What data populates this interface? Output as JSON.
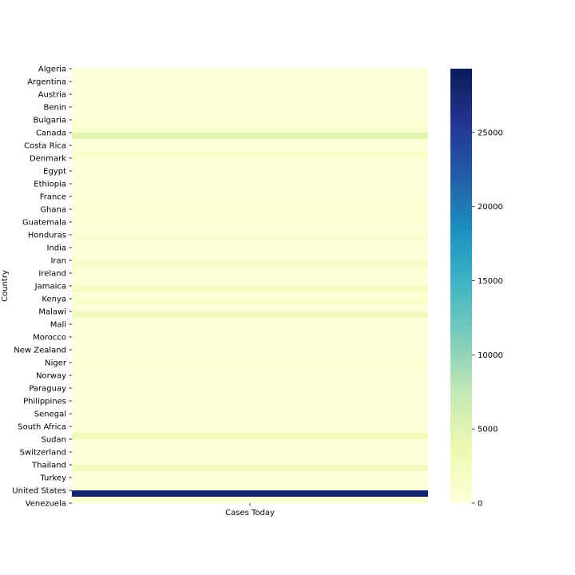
{
  "chart_data": {
    "type": "heatmap",
    "title": "",
    "xlabel": "",
    "ylabel": "Country",
    "x_categories": [
      "Cases Today"
    ],
    "y_tick_labels": [
      "Algeria",
      "Argentina",
      "Austria",
      "Benin",
      "Bulgaria",
      "Canada",
      "Costa Rica",
      "Denmark",
      "Egypt",
      "Ethiopia",
      "France",
      "Ghana",
      "Guatemala",
      "Honduras",
      "India",
      "Iran",
      "Ireland",
      "Jamaica",
      "Kenya",
      "Malawi",
      "Mali",
      "Morocco",
      "New Zealand",
      "Niger",
      "Norway",
      "Paraguay",
      "Philippines",
      "Senegal",
      "South Africa",
      "Sudan",
      "Switzerland",
      "Thailand",
      "Turkey",
      "United States",
      "Venezuela"
    ],
    "row_count": 68,
    "values": [
      200,
      150,
      300,
      250,
      150,
      200,
      400,
      250,
      350,
      1000,
      4500,
      200,
      300,
      1200,
      350,
      150,
      200,
      250,
      300,
      400,
      250,
      700,
      300,
      500,
      400,
      150,
      800,
      200,
      250,
      200,
      1500,
      600,
      350,
      300,
      2000,
      300,
      1200,
      400,
      2500,
      300,
      200,
      250,
      150,
      200,
      300,
      250,
      700,
      300,
      250,
      200,
      150,
      300,
      200,
      250,
      300,
      350,
      250,
      3000,
      300,
      400,
      300,
      250,
      2500,
      250,
      200,
      250,
      28000,
      500
    ],
    "colorbar": {
      "colormap": "YlGnBu",
      "range": [
        0,
        29300
      ],
      "ticks": [
        0,
        5000,
        10000,
        15000,
        20000,
        25000
      ],
      "tick_labels": [
        "0",
        "5000",
        "10000",
        "15000",
        "20000",
        "25000"
      ]
    }
  }
}
